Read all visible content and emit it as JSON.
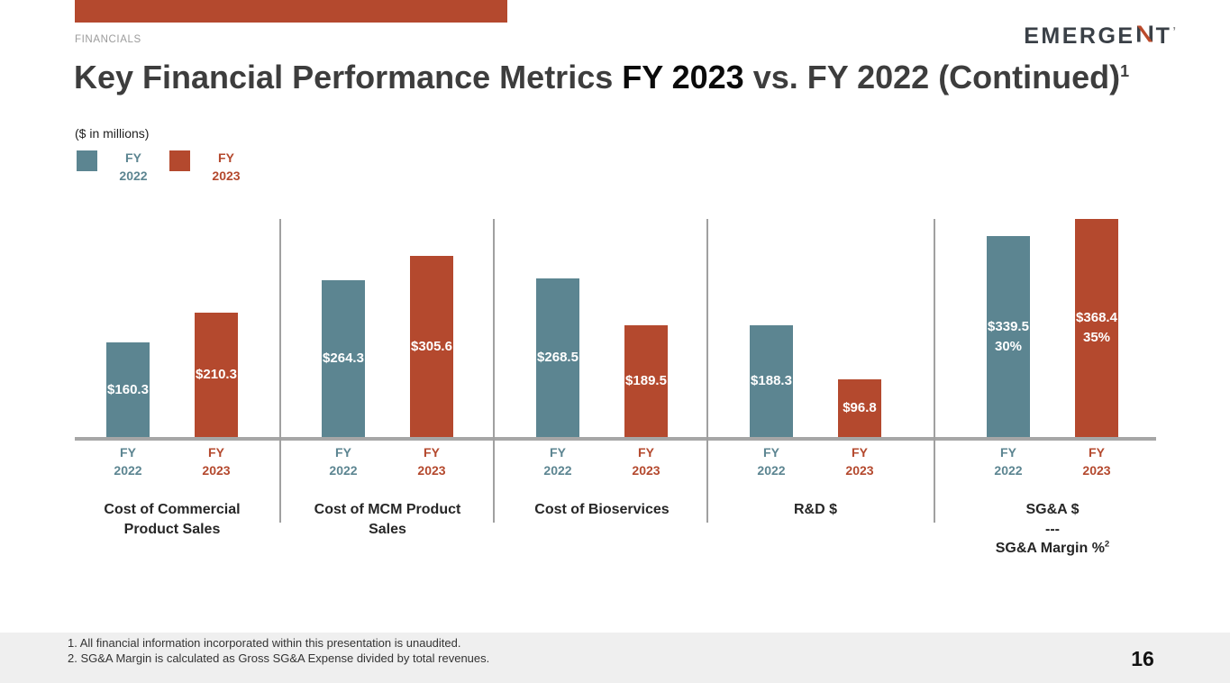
{
  "colors": {
    "fy2022": "#5C8591",
    "fy2023": "#B4492E",
    "accent_banner": "#B4492E",
    "logo_dark": "#3A4047",
    "logo_red": "#BA4A2B",
    "axis_gray": "#A6A6A6",
    "footer_bg": "#EFEFEF"
  },
  "header": {
    "eyebrow": "FINANCIALS",
    "title": {
      "prefix": "Key Financial Performance Metrics ",
      "highlight": "FY 2023",
      "suffix": " vs. FY 2022 (Continued)",
      "superscript": "1"
    },
    "logo": {
      "left": "EMERGE",
      "right": "T",
      "mark": "’"
    }
  },
  "chart": {
    "units_note": "($ in millions)"
  },
  "legend": [
    {
      "line1": "FY",
      "line2": "2022",
      "color_key": "fy2022"
    },
    {
      "line1": "FY",
      "line2": "2023",
      "color_key": "fy2023"
    }
  ],
  "chart_data": {
    "type": "bar",
    "title": "Key Financial Performance Metrics FY 2023 vs. FY 2022 (Continued)",
    "ylabel": "$ in millions",
    "y_axis_visible": false,
    "legend_position": "top-left",
    "categories": [
      "Cost of Commercial Product Sales",
      "Cost of MCM Product Sales",
      "Cost of Bioservices",
      "R&D $",
      "SG&A $ --- SG&A Margin %"
    ],
    "category_label_lines": [
      [
        "Cost of Commercial",
        "Product Sales"
      ],
      [
        "Cost of MCM Product",
        "Sales"
      ],
      [
        "Cost of Bioservices"
      ],
      [
        "R&D $"
      ],
      [
        "SG&A $",
        "---",
        "SG&A Margin %"
      ]
    ],
    "category_label_sup": [
      null,
      null,
      null,
      null,
      "2"
    ],
    "series": [
      {
        "name": "FY 2022",
        "color_key": "fy2022",
        "tick_lines": [
          "FY",
          "2022"
        ],
        "values": [
          160.3,
          264.3,
          268.5,
          188.3,
          339.5
        ],
        "bar_labels": [
          [
            "$160.3"
          ],
          [
            "$264.3"
          ],
          [
            "$268.5"
          ],
          [
            "$188.3"
          ],
          [
            "$339.5",
            "30%"
          ]
        ]
      },
      {
        "name": "FY 2023",
        "color_key": "fy2023",
        "tick_lines": [
          "FY",
          "2023"
        ],
        "values": [
          210.3,
          305.6,
          189.5,
          96.8,
          368.4
        ],
        "bar_labels": [
          [
            "$210.3"
          ],
          [
            "$305.6"
          ],
          [
            "$189.5"
          ],
          [
            "$96.8"
          ],
          [
            "$368.4",
            "35%"
          ]
        ]
      }
    ],
    "sga_margin_pct": {
      "fy2022": 30,
      "fy2023": 35
    }
  },
  "footnotes": [
    "1. All financial information incorporated within this presentation is unaudited.",
    "2. SG&A Margin is calculated as Gross SG&A Expense divided by total revenues."
  ],
  "page_number": "16"
}
